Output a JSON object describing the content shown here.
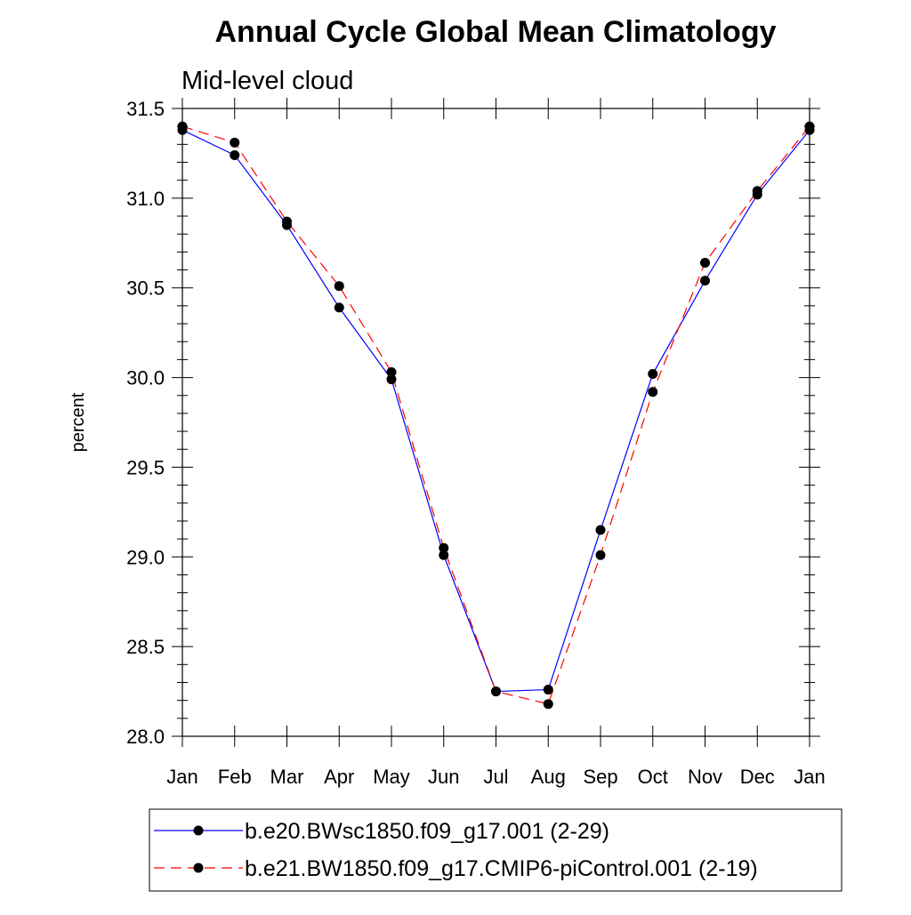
{
  "chart_data": {
    "type": "line",
    "title": "Annual Cycle Global Mean Climatology",
    "subtitle": "Mid-level cloud",
    "xlabel": "",
    "ylabel": "percent",
    "categories": [
      "Jan",
      "Feb",
      "Mar",
      "Apr",
      "May",
      "Jun",
      "Jul",
      "Aug",
      "Sep",
      "Oct",
      "Nov",
      "Dec",
      "Jan"
    ],
    "ylim": [
      28.0,
      31.5
    ],
    "yticks": [
      "28.0",
      "28.5",
      "29.0",
      "29.5",
      "30.0",
      "30.5",
      "31.0",
      "31.5"
    ],
    "grid": false,
    "legend_position": "bottom",
    "series": [
      {
        "name": "b.e20.BWsc1850.f09_g17.001 (2-29)",
        "color": "#0000ff",
        "dash": "solid",
        "values": [
          31.38,
          31.24,
          30.85,
          30.39,
          29.99,
          29.01,
          28.25,
          28.26,
          29.15,
          30.02,
          30.54,
          31.02,
          31.38
        ]
      },
      {
        "name": "b.e21.BW1850.f09_g17.CMIP6-piControl.001 (2-19)",
        "color": "#ff0000",
        "dash": "dashed",
        "values": [
          31.4,
          31.31,
          30.87,
          30.51,
          30.03,
          29.05,
          28.25,
          28.18,
          29.01,
          29.92,
          30.64,
          31.04,
          31.4
        ]
      }
    ]
  }
}
